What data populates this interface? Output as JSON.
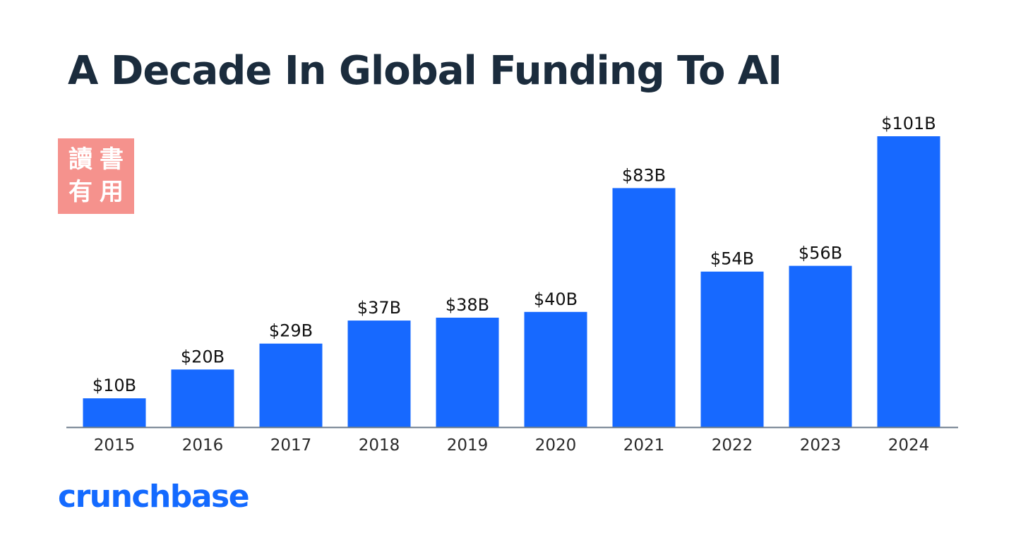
{
  "chart_data": {
    "type": "bar",
    "title": "A Decade In Global Funding To AI",
    "categories": [
      "2015",
      "2016",
      "2017",
      "2018",
      "2019",
      "2020",
      "2021",
      "2022",
      "2023",
      "2024"
    ],
    "values": [
      10,
      20,
      29,
      37,
      38,
      40,
      83,
      54,
      56,
      101
    ],
    "data_labels": [
      "$10B",
      "$20B",
      "$29B",
      "$37B",
      "$38B",
      "$40B",
      "$83B",
      "$54B",
      "$56B",
      "$101B"
    ],
    "xlabel": "",
    "ylabel": "",
    "unit": "$B",
    "ylim": [
      0,
      101
    ],
    "grid": false,
    "bar_color": "#1769ff",
    "axis_color": "#6b7a8a"
  },
  "stamp": {
    "chars": [
      "讀",
      "書",
      "有",
      "用"
    ],
    "color": "#f5928d"
  },
  "brand": {
    "name": "crunchbase",
    "color": "#146aff"
  }
}
